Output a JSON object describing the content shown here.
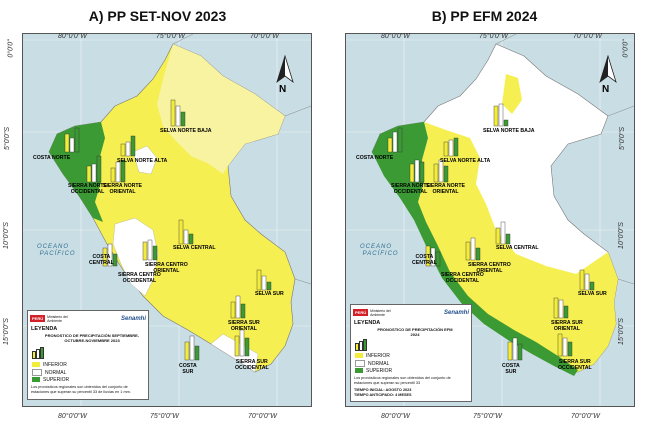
{
  "panels": [
    {
      "title": "A) PP SET-NOV 2023",
      "legend": {
        "title": "LEYENDA",
        "subtitle": "PRONOSTICO DE PRECIPITACIÓN SEPTIEMBRE-OCTUBRE-NOVIEMBRE 2023",
        "items": [
          "INFERIOR",
          "NORMAL",
          "SUPERIOR"
        ],
        "note": "Los pronósticos regionales son obtenidos del conjunto de estaciones que superan su percentil 33 de lluvias en 1 mm.",
        "footer": ""
      }
    },
    {
      "title": "B) PP EFM 2024",
      "legend": {
        "title": "LEYENDA",
        "subtitle": "PRONOSTICO DE PRECIPITACIÓN EFM 2024",
        "items": [
          "INFERIOR",
          "NORMAL",
          "SUPERIOR"
        ],
        "note": "Los pronósticos regionales son obtenidos del conjunto de estaciones que superan su percentil 33",
        "footer": "TIEMPO INICIAL: AGOSTO 2023 TIEMPO ANTICIPADO: 4 MESES"
      }
    }
  ],
  "grid": {
    "lon_labels": [
      "80°0'0\"W",
      "75°0'0\"W",
      "70°0'0\"W"
    ],
    "lat_labels": [
      "0°0'0\"",
      "5°0'0\"S",
      "10°0'0\"S",
      "15°0'0\"S"
    ]
  },
  "north_label": "N",
  "ocean_label": [
    "OCEANO",
    "PACÍFICO"
  ],
  "logos": {
    "peru": "PERÚ",
    "ministry": "Ministerio del Ambiente",
    "senamhi": "Senamhi"
  },
  "regions": {
    "costa_norte": "COSTA NORTE",
    "selva_norte_alta": "SELVA NORTE ALTA",
    "sierra_norte_occidental": [
      "SIERRA NORTE",
      "OCCIDENTAL"
    ],
    "sierra_norte_oriental": [
      "SIERRA NORTE",
      "ORIENTAL"
    ],
    "selva_norte_baja": "SELVA NORTE BAJA",
    "selva_central": "SELVA CENTRAL",
    "costa_central": [
      "COSTA",
      "CENTRAL"
    ],
    "sierra_centro_oriental": [
      "SIERRA CENTRO",
      "ORIENTAL"
    ],
    "sierra_centro_occidental": [
      "SIERRA CENTRO",
      "OCCIDENTAL"
    ],
    "selva_sur": "SELVA SUR",
    "sierra_sur_oriental": [
      "SIERRA SUR",
      "ORIENTAL"
    ],
    "costa_sur": [
      "COSTA",
      "SUR"
    ],
    "sierra_sur_occidental": [
      "SIERRA SUR",
      "OCCIDENTAL"
    ]
  },
  "colors": {
    "inferior": "#f2ec3a",
    "normal": "#ffffff",
    "superior": "#3c9a35",
    "ocean": "#c9dde4",
    "normal_fill": "#fbf7a6"
  }
}
